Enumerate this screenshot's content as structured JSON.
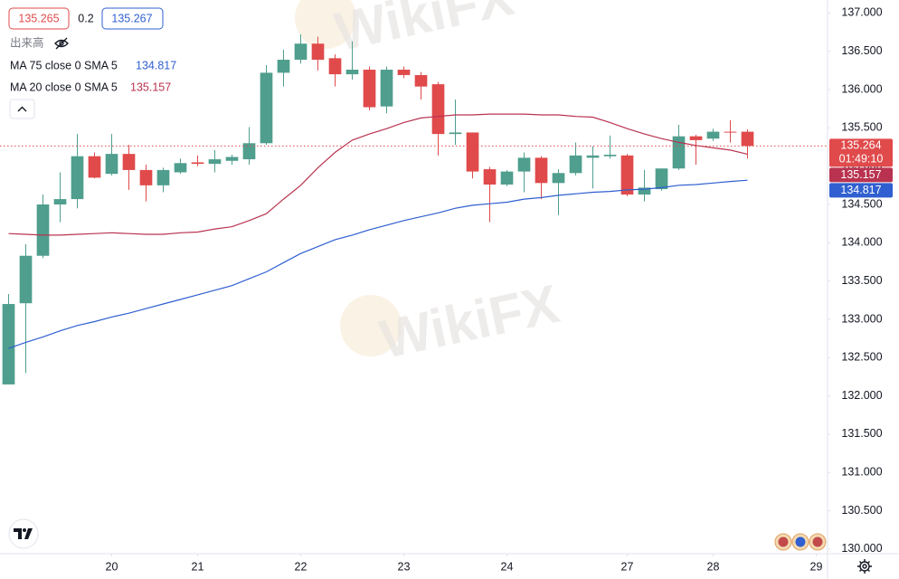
{
  "chart_data": {
    "type": "candlestick",
    "bid": 135.265,
    "spread": 0.2,
    "ask": 135.267,
    "volume_label": "出来高",
    "countdown": "01:49:10",
    "watermark": "WikiFX",
    "up_color": "#4f9e8e",
    "down_color": "#e04a4b",
    "categories": [
      null,
      null,
      null,
      null,
      null,
      null,
      "20",
      null,
      null,
      null,
      null,
      "21",
      null,
      null,
      null,
      null,
      null,
      "22",
      null,
      null,
      null,
      null,
      null,
      "23",
      null,
      null,
      null,
      null,
      null,
      "24",
      null,
      null,
      null,
      null,
      null,
      null,
      "27",
      null,
      null,
      null,
      null,
      "28",
      null,
      null,
      null,
      null,
      null,
      "29"
    ],
    "open": [
      132.15,
      133.21,
      133.83,
      134.5,
      134.57,
      135.13,
      134.9,
      135.16,
      134.95,
      134.75,
      134.92,
      135.05,
      135.03,
      135.07,
      135.09,
      135.3,
      136.22,
      136.39,
      136.6,
      136.41,
      136.2,
      136.26,
      135.78,
      136.26,
      136.19,
      136.07,
      135.42,
      135.44,
      134.96,
      134.76,
      134.93,
      135.11,
      134.78,
      134.91,
      135.11,
      135.13,
      135.14,
      134.63,
      134.7,
      134.97,
      135.39,
      135.36,
      135.45,
      135.45,
      null,
      null,
      null,
      null
    ],
    "high": [
      133.33,
      133.98,
      134.63,
      134.92,
      135.42,
      135.18,
      135.42,
      135.28,
      135.02,
      134.98,
      135.1,
      135.14,
      135.21,
      135.15,
      135.51,
      136.32,
      136.52,
      136.72,
      136.69,
      136.46,
      136.63,
      136.3,
      136.3,
      136.3,
      136.23,
      136.1,
      135.87,
      135.44,
      134.99,
      134.95,
      135.18,
      135.13,
      134.96,
      135.31,
      135.26,
      135.4,
      135.16,
      134.95,
      134.97,
      135.54,
      135.41,
      135.49,
      135.6,
      135.48,
      null,
      null,
      null,
      null
    ],
    "low": [
      132.15,
      132.3,
      133.8,
      134.27,
      134.45,
      134.84,
      134.88,
      134.69,
      134.54,
      134.66,
      134.9,
      135.0,
      134.92,
      135.02,
      135.02,
      135.28,
      136.04,
      136.34,
      136.25,
      136.04,
      136.13,
      135.73,
      135.69,
      136.15,
      135.87,
      135.14,
      135.28,
      134.84,
      134.27,
      134.74,
      134.66,
      134.57,
      134.36,
      134.88,
      134.71,
      135.1,
      134.61,
      134.54,
      134.68,
      134.95,
      135.02,
      135.33,
      135.31,
      135.1,
      null,
      null,
      null,
      null
    ],
    "close": [
      133.2,
      133.83,
      134.5,
      134.57,
      135.13,
      134.85,
      135.16,
      134.95,
      134.75,
      134.95,
      135.04,
      135.03,
      135.09,
      135.12,
      135.3,
      136.22,
      136.39,
      136.6,
      136.39,
      136.2,
      136.26,
      135.77,
      136.26,
      136.19,
      136.04,
      135.42,
      135.44,
      134.93,
      134.76,
      134.93,
      135.11,
      134.78,
      134.91,
      135.14,
      135.14,
      135.15,
      134.63,
      134.72,
      134.97,
      135.39,
      135.34,
      135.45,
      135.44,
      135.264,
      null,
      null,
      null,
      null
    ],
    "series": [
      {
        "name": "MA 75 close 0 SMA 5",
        "color": "#2f5fd0",
        "values": [
          132.62,
          132.7,
          132.77,
          132.85,
          132.92,
          132.97,
          133.03,
          133.08,
          133.14,
          133.2,
          133.26,
          133.32,
          133.38,
          133.44,
          133.53,
          133.62,
          133.74,
          133.86,
          133.95,
          134.04,
          134.1,
          134.17,
          134.23,
          134.29,
          134.34,
          134.39,
          134.45,
          134.49,
          134.51,
          134.53,
          134.57,
          134.59,
          134.62,
          134.64,
          134.66,
          134.67,
          134.69,
          134.7,
          134.72,
          134.75,
          134.76,
          134.78,
          134.8,
          134.817,
          null,
          null,
          null,
          null
        ]
      },
      {
        "name": "MA 20 close 0 SMA 5",
        "color": "#b93350",
        "values": [
          134.12,
          134.11,
          134.1,
          134.1,
          134.11,
          134.12,
          134.13,
          134.12,
          134.11,
          134.11,
          134.13,
          134.14,
          134.18,
          134.21,
          134.29,
          134.38,
          134.57,
          134.75,
          134.98,
          135.18,
          135.34,
          135.42,
          135.49,
          135.57,
          135.63,
          135.65,
          135.67,
          135.67,
          135.68,
          135.68,
          135.68,
          135.67,
          135.67,
          135.65,
          135.64,
          135.57,
          135.49,
          135.42,
          135.36,
          135.31,
          135.27,
          135.24,
          135.21,
          135.157,
          null,
          null,
          null,
          null
        ]
      }
    ],
    "ylim": [
      129.94,
      137.17
    ],
    "yticks": [
      {
        "value": 130,
        "label": "130.000"
      },
      {
        "value": 130.5,
        "label": "130.500"
      },
      {
        "value": 131,
        "label": "131.000"
      },
      {
        "value": 131.5,
        "label": "131.500"
      },
      {
        "value": 132,
        "label": "132.000"
      },
      {
        "value": 132.5,
        "label": "132.500"
      },
      {
        "value": 133,
        "label": "133.000"
      },
      {
        "value": 133.5,
        "label": "133.500"
      },
      {
        "value": 134,
        "label": "134.000"
      },
      {
        "value": 134.5,
        "label": "134.500"
      },
      {
        "value": 135,
        "label": "135.000"
      },
      {
        "value": 135.5,
        "label": "135.500"
      },
      {
        "value": 136,
        "label": "136.000"
      },
      {
        "value": 136.5,
        "label": "136.500"
      },
      {
        "value": 137,
        "label": "137.000"
      }
    ],
    "grid": false
  }
}
